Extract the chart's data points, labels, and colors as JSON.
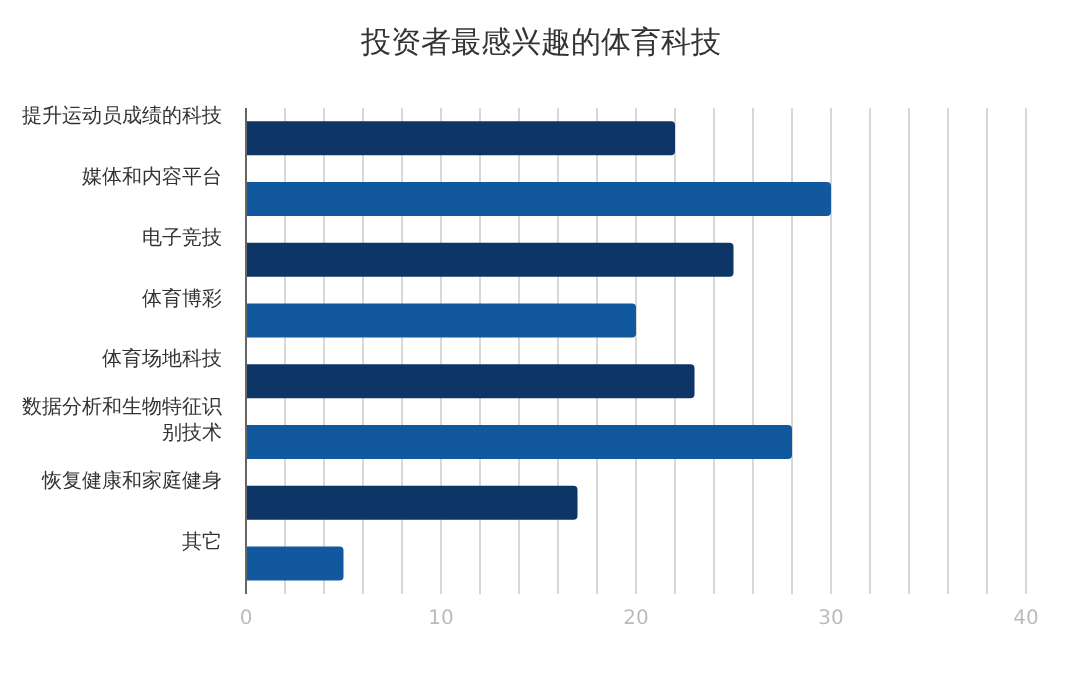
{
  "chart_data": {
    "type": "bar",
    "orientation": "horizontal",
    "title": "投资者最感兴趣的体育科技",
    "categories": [
      "提升运动员成绩的科技",
      "媒体和内容平台",
      "电子竞技",
      "体育博彩",
      "体育场地科技",
      "数据分析和生物特征识别技术",
      "恢复健康和家庭健身",
      "其它"
    ],
    "values": [
      22,
      30,
      25,
      20,
      23,
      28,
      17,
      5
    ],
    "colors": [
      "#0d3565",
      "#12589e",
      "#0d3565",
      "#12589e",
      "#0d3565",
      "#12589e",
      "#0d3565",
      "#12589e"
    ],
    "xlim": [
      0,
      40
    ],
    "xticks": [
      0,
      {
        "value": 2,
        "label": null
      },
      {
        "value": 4,
        "label": null
      },
      {
        "value": 6,
        "label": null
      },
      {
        "value": 8,
        "label": null
      },
      10,
      {
        "value": 12,
        "label": null
      },
      {
        "value": 14,
        "label": null
      },
      {
        "value": 16,
        "label": null
      },
      {
        "value": 18,
        "label": null
      },
      20,
      {
        "value": 22,
        "label": null
      },
      {
        "value": 24,
        "label": null
      },
      {
        "value": 26,
        "label": null
      },
      {
        "value": 28,
        "label": null
      },
      30,
      {
        "value": 32,
        "label": null
      },
      {
        "value": 34,
        "label": null
      },
      {
        "value": 36,
        "label": null
      },
      {
        "value": 38,
        "label": null
      },
      40
    ],
    "grid": "x"
  }
}
